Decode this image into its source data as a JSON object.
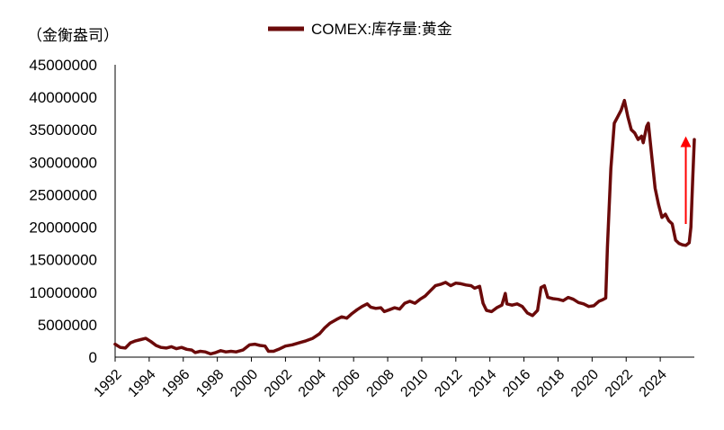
{
  "chart_data": {
    "type": "line",
    "unit_label": "（金衡盎司）",
    "series": [
      {
        "name": "COMEX:库存量:黄金",
        "color": "#6b0a0a",
        "points": [
          [
            1992.0,
            2000000
          ],
          [
            1992.3,
            1500000
          ],
          [
            1992.6,
            1400000
          ],
          [
            1992.9,
            2200000
          ],
          [
            1993.2,
            2500000
          ],
          [
            1993.5,
            2700000
          ],
          [
            1993.8,
            2900000
          ],
          [
            1994.1,
            2400000
          ],
          [
            1994.4,
            1800000
          ],
          [
            1994.7,
            1500000
          ],
          [
            1995.0,
            1400000
          ],
          [
            1995.3,
            1600000
          ],
          [
            1995.6,
            1300000
          ],
          [
            1995.9,
            1500000
          ],
          [
            1996.2,
            1200000
          ],
          [
            1996.5,
            1100000
          ],
          [
            1996.7,
            700000
          ],
          [
            1997.0,
            900000
          ],
          [
            1997.3,
            800000
          ],
          [
            1997.6,
            500000
          ],
          [
            1997.9,
            700000
          ],
          [
            1998.2,
            1000000
          ],
          [
            1998.5,
            800000
          ],
          [
            1998.8,
            900000
          ],
          [
            1999.1,
            800000
          ],
          [
            1999.5,
            1100000
          ],
          [
            1999.9,
            1900000
          ],
          [
            2000.2,
            2000000
          ],
          [
            2000.5,
            1800000
          ],
          [
            2000.8,
            1700000
          ],
          [
            2001.0,
            900000
          ],
          [
            2001.3,
            900000
          ],
          [
            2001.6,
            1200000
          ],
          [
            2002.0,
            1700000
          ],
          [
            2002.4,
            1900000
          ],
          [
            2002.8,
            2200000
          ],
          [
            2003.2,
            2500000
          ],
          [
            2003.6,
            2900000
          ],
          [
            2004.0,
            3600000
          ],
          [
            2004.3,
            4500000
          ],
          [
            2004.6,
            5200000
          ],
          [
            2005.0,
            5800000
          ],
          [
            2005.3,
            6200000
          ],
          [
            2005.6,
            6000000
          ],
          [
            2005.9,
            6700000
          ],
          [
            2006.2,
            7300000
          ],
          [
            2006.5,
            7800000
          ],
          [
            2006.8,
            8200000
          ],
          [
            2007.0,
            7700000
          ],
          [
            2007.3,
            7500000
          ],
          [
            2007.6,
            7600000
          ],
          [
            2007.8,
            7000000
          ],
          [
            2008.1,
            7300000
          ],
          [
            2008.4,
            7600000
          ],
          [
            2008.7,
            7400000
          ],
          [
            2009.0,
            8300000
          ],
          [
            2009.3,
            8600000
          ],
          [
            2009.6,
            8300000
          ],
          [
            2009.9,
            8900000
          ],
          [
            2010.2,
            9400000
          ],
          [
            2010.5,
            10200000
          ],
          [
            2010.8,
            11000000
          ],
          [
            2011.1,
            11200000
          ],
          [
            2011.4,
            11500000
          ],
          [
            2011.7,
            11000000
          ],
          [
            2012.0,
            11400000
          ],
          [
            2012.3,
            11300000
          ],
          [
            2012.6,
            11100000
          ],
          [
            2012.9,
            11000000
          ],
          [
            2013.1,
            10600000
          ],
          [
            2013.4,
            10900000
          ],
          [
            2013.6,
            8300000
          ],
          [
            2013.8,
            7200000
          ],
          [
            2014.1,
            7000000
          ],
          [
            2014.4,
            7600000
          ],
          [
            2014.7,
            8000000
          ],
          [
            2014.9,
            9800000
          ],
          [
            2015.0,
            8200000
          ],
          [
            2015.3,
            8000000
          ],
          [
            2015.6,
            8200000
          ],
          [
            2015.9,
            7800000
          ],
          [
            2016.2,
            6800000
          ],
          [
            2016.5,
            6400000
          ],
          [
            2016.8,
            7200000
          ],
          [
            2017.0,
            10700000
          ],
          [
            2017.2,
            11000000
          ],
          [
            2017.4,
            9200000
          ],
          [
            2017.7,
            9000000
          ],
          [
            2018.0,
            8900000
          ],
          [
            2018.3,
            8700000
          ],
          [
            2018.6,
            9200000
          ],
          [
            2018.9,
            8900000
          ],
          [
            2019.2,
            8400000
          ],
          [
            2019.5,
            8200000
          ],
          [
            2019.8,
            7800000
          ],
          [
            2020.1,
            7900000
          ],
          [
            2020.4,
            8600000
          ],
          [
            2020.6,
            8800000
          ],
          [
            2020.8,
            9100000
          ],
          [
            2020.9,
            17000000
          ],
          [
            2021.1,
            29000000
          ],
          [
            2021.3,
            36000000
          ],
          [
            2021.5,
            37000000
          ],
          [
            2021.7,
            38000000
          ],
          [
            2021.9,
            39500000
          ],
          [
            2022.1,
            37000000
          ],
          [
            2022.3,
            35000000
          ],
          [
            2022.5,
            34500000
          ],
          [
            2022.7,
            33500000
          ],
          [
            2022.9,
            34000000
          ],
          [
            2023.0,
            33000000
          ],
          [
            2023.2,
            35500000
          ],
          [
            2023.3,
            36000000
          ],
          [
            2023.5,
            31000000
          ],
          [
            2023.7,
            26000000
          ],
          [
            2023.9,
            23500000
          ],
          [
            2024.1,
            21500000
          ],
          [
            2024.3,
            22000000
          ],
          [
            2024.5,
            21000000
          ],
          [
            2024.7,
            20500000
          ],
          [
            2024.9,
            18000000
          ],
          [
            2025.1,
            17500000
          ],
          [
            2025.3,
            17300000
          ],
          [
            2025.5,
            17200000
          ],
          [
            2025.7,
            17600000
          ],
          [
            2025.8,
            20000000
          ],
          [
            2025.9,
            27000000
          ],
          [
            2026.0,
            33500000
          ]
        ]
      }
    ],
    "xlim": [
      1992,
      2026
    ],
    "ylim": [
      0,
      45000000
    ],
    "yticks": [
      0,
      5000000,
      10000000,
      15000000,
      20000000,
      25000000,
      30000000,
      35000000,
      40000000,
      45000000
    ],
    "xticks": [
      1992,
      1994,
      1996,
      1998,
      2000,
      2002,
      2004,
      2006,
      2008,
      2010,
      2012,
      2014,
      2016,
      2018,
      2020,
      2022,
      2024
    ],
    "annotations": [
      {
        "type": "arrow",
        "color": "#ff0000",
        "from": [
          2025.5,
          20500000
        ],
        "to": [
          2025.5,
          34000000
        ]
      }
    ],
    "legend_placement": "top-center",
    "grid": false
  }
}
